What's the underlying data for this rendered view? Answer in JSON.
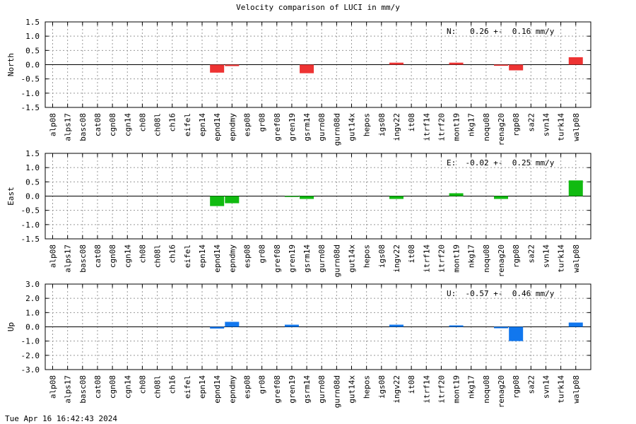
{
  "title": "Velocity comparison of LUCI in mm/y",
  "footer": "Tue Apr 16 16:42:43 2024",
  "chart_data": [
    {
      "type": "bar",
      "ylabel": "North",
      "summary": "N:   0.26 +-  0.16 mm/y",
      "color": "#ee3333",
      "ylim": [
        -1.5,
        1.5
      ],
      "yticks": [
        "1.5",
        "1.0",
        "0.5",
        "0.0",
        "-0.5",
        "-1.0",
        "-1.5"
      ],
      "categories": [
        "alp08",
        "alps17",
        "basc08",
        "cat08",
        "cgn08",
        "cgn14",
        "ch08",
        "ch08l",
        "ch16",
        "eifel",
        "epn14",
        "epnd14",
        "epndmy",
        "esp08",
        "gr08",
        "gref08",
        "gren19",
        "gsrm14",
        "gurn08",
        "gurn08d",
        "gut14x",
        "hepos",
        "igs08",
        "ingv22",
        "it08",
        "itrf14",
        "itrf20",
        "mont19",
        "nkg17",
        "noqu08",
        "renag20",
        "rgp08",
        "sa22",
        "svn14",
        "turk14",
        "walp08"
      ],
      "values": [
        0,
        0,
        0,
        0,
        0,
        0,
        0,
        0,
        0,
        0,
        0,
        -0.28,
        -0.05,
        0,
        0,
        0,
        0,
        -0.3,
        0,
        0,
        0,
        0,
        0,
        0.07,
        0,
        0,
        0,
        0.07,
        0,
        0,
        -0.04,
        -0.2,
        0,
        0,
        0,
        0.26
      ]
    },
    {
      "type": "bar",
      "ylabel": "East",
      "summary": "E:  -0.02 +-  0.25 mm/y",
      "color": "#11bb11",
      "ylim": [
        -1.5,
        1.5
      ],
      "yticks": [
        "1.5",
        "1.0",
        "0.5",
        "0.0",
        "-0.5",
        "-1.0",
        "-1.5"
      ],
      "categories": [
        "alp08",
        "alps17",
        "basc08",
        "cat08",
        "cgn08",
        "cgn14",
        "ch08",
        "ch08l",
        "ch16",
        "eifel",
        "epn14",
        "epnd14",
        "epndmy",
        "esp08",
        "gr08",
        "gref08",
        "gren19",
        "gsrm14",
        "gurn08",
        "gurn08d",
        "gut14x",
        "hepos",
        "igs08",
        "ingv22",
        "it08",
        "itrf14",
        "itrf20",
        "mont19",
        "nkg17",
        "noqu08",
        "renag20",
        "rgp08",
        "sa22",
        "svn14",
        "turk14",
        "walp08"
      ],
      "values": [
        0,
        0,
        0,
        0,
        0,
        0,
        0,
        0,
        0,
        0,
        0,
        -0.35,
        -0.25,
        0,
        0,
        0,
        -0.03,
        -0.1,
        0,
        0,
        0,
        0,
        0,
        -0.1,
        0,
        0,
        0,
        0.1,
        0,
        0,
        -0.1,
        0,
        0,
        0,
        0,
        0.55
      ]
    },
    {
      "type": "bar",
      "ylabel": "Up",
      "summary": "U:  -0.57 +-  0.46 mm/y",
      "color": "#1177ee",
      "ylim": [
        -3.0,
        3.0
      ],
      "yticks": [
        "3.0",
        "2.0",
        "1.0",
        "0.0",
        "-1.0",
        "-2.0",
        "-3.0"
      ],
      "categories": [
        "alp08",
        "alps17",
        "basc08",
        "cat08",
        "cgn08",
        "cgn14",
        "ch08",
        "ch08l",
        "ch16",
        "eifel",
        "epn14",
        "epnd14",
        "epndmy",
        "esp08",
        "gr08",
        "gref08",
        "gren19",
        "gsrm14",
        "gurn08",
        "gurn08d",
        "gut14x",
        "hepos",
        "igs08",
        "ingv22",
        "it08",
        "itrf14",
        "itrf20",
        "mont19",
        "nkg17",
        "noqu08",
        "renag20",
        "rgp08",
        "sa22",
        "svn14",
        "turk14",
        "walp08"
      ],
      "values": [
        0,
        0,
        0,
        0,
        0,
        0,
        0,
        0,
        0,
        0,
        0,
        -0.12,
        0.35,
        0,
        0,
        0,
        0.15,
        0,
        0,
        0,
        0,
        0,
        0,
        0.15,
        0,
        0,
        0,
        0.1,
        0,
        0,
        -0.1,
        -1.0,
        0,
        0,
        0,
        0.3
      ]
    }
  ]
}
